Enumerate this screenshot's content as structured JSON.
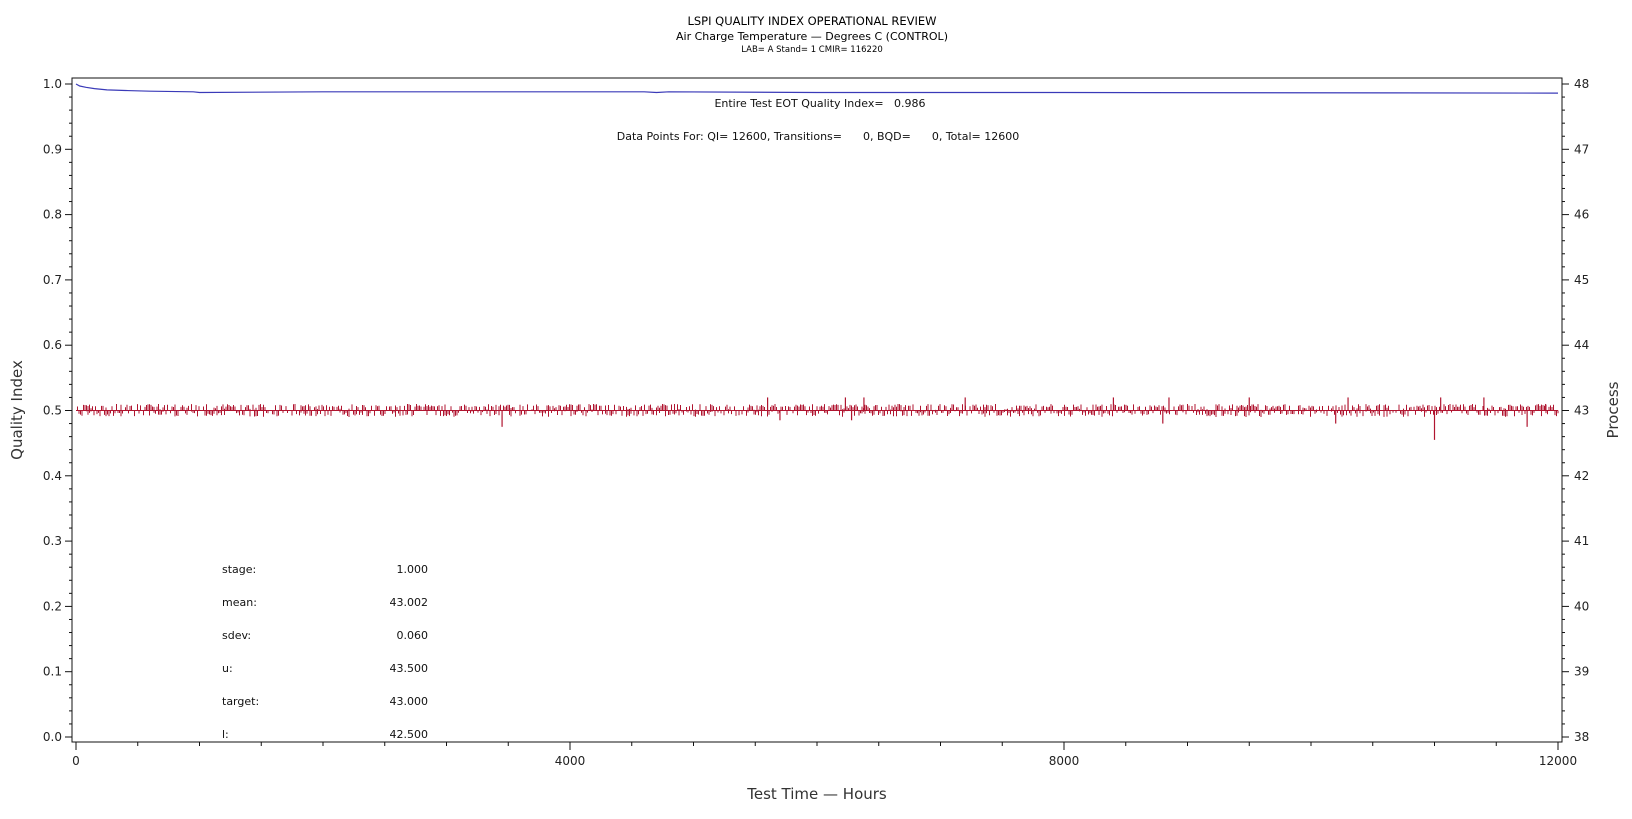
{
  "chart_data": {
    "type": "line",
    "title": "LSPI QUALITY INDEX OPERATIONAL REVIEW",
    "subtitle": "Air Charge Temperature — Degrees C (CONTROL)",
    "subtitle2": "LAB= A Stand= 1 CMIR= 116220",
    "xlabel": "Test Time — Hours",
    "ylabel_left": "Quality Index",
    "ylabel_right": "Process",
    "xlim": [
      0,
      12000
    ],
    "ylim_left": [
      0,
      1
    ],
    "ylim_right": [
      38,
      48
    ],
    "x_ticks": [
      "0",
      "4000",
      "8000",
      "12000"
    ],
    "y_left_ticks": [
      "0.0",
      "0.1",
      "0.2",
      "0.3",
      "0.4",
      "0.5",
      "0.6",
      "0.7",
      "0.8",
      "0.9",
      "1.0"
    ],
    "y_right_ticks": [
      "38",
      "39",
      "40",
      "41",
      "42",
      "43",
      "44",
      "45",
      "46",
      "47",
      "48"
    ],
    "annotations": {
      "eot_quality": "Entire Test EOT Quality Index=   0.986",
      "data_points": "Data Points For: QI= 12600, Transitions=      0, BQD=      0, Total= 12600"
    },
    "stats": [
      {
        "label": "stage:",
        "value": "1.000"
      },
      {
        "label": "mean:",
        "value": "43.002"
      },
      {
        "label": "sdev:",
        "value": "0.060"
      },
      {
        "label": "u:",
        "value": "43.500"
      },
      {
        "label": "target:",
        "value": "43.000"
      },
      {
        "label": "l:",
        "value": "42.500"
      }
    ],
    "series": [
      {
        "axis": "left",
        "color": "#3a3ab8",
        "points": [
          [
            0,
            1.0
          ],
          [
            30,
            0.997
          ],
          [
            80,
            0.995
          ],
          [
            150,
            0.993
          ],
          [
            250,
            0.991
          ],
          [
            400,
            0.99
          ],
          [
            600,
            0.989
          ],
          [
            950,
            0.988
          ],
          [
            1000,
            0.987
          ],
          [
            2000,
            0.988
          ],
          [
            4600,
            0.988
          ],
          [
            4700,
            0.987
          ],
          [
            4800,
            0.988
          ],
          [
            6000,
            0.987
          ],
          [
            8000,
            0.987
          ],
          [
            12000,
            0.986
          ]
        ]
      },
      {
        "axis": "right",
        "color": "#b01530",
        "mean": 43.0,
        "typical_range": [
          42.9,
          43.1
        ],
        "spikes": [
          [
            3450,
            42.75
          ],
          [
            5600,
            43.2
          ],
          [
            5700,
            42.85
          ],
          [
            6230,
            43.2
          ],
          [
            6280,
            42.85
          ],
          [
            6380,
            43.2
          ],
          [
            7200,
            43.2
          ],
          [
            8400,
            43.2
          ],
          [
            8800,
            42.8
          ],
          [
            8850,
            43.2
          ],
          [
            9500,
            43.2
          ],
          [
            10200,
            42.8
          ],
          [
            10300,
            43.2
          ],
          [
            11000,
            42.55
          ],
          [
            11050,
            43.2
          ],
          [
            11400,
            43.2
          ],
          [
            11750,
            42.75
          ],
          [
            11900,
            43.1
          ]
        ]
      }
    ]
  }
}
